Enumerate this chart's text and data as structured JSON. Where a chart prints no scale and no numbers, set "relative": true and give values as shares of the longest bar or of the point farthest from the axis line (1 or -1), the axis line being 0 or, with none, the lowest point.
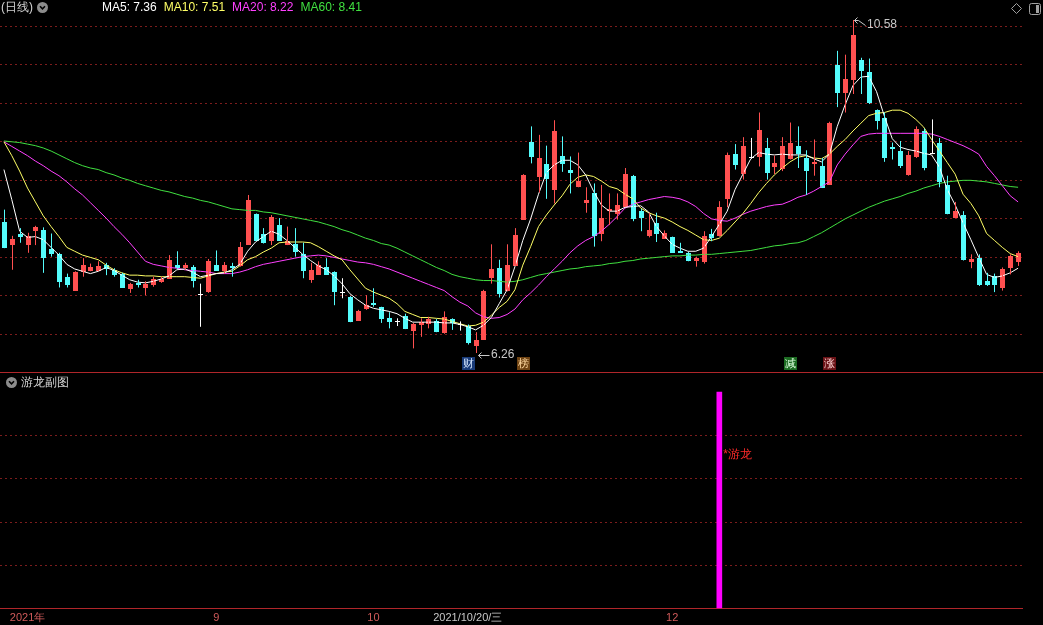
{
  "chart_data": [
    {
      "type": "candlestick",
      "title": "(日线)",
      "categories": [
        null,
        null,
        null,
        "2021年",
        null,
        null,
        null,
        null,
        null,
        null,
        null,
        null,
        null,
        null,
        null,
        null,
        null,
        null,
        null,
        null,
        null,
        null,
        null,
        null,
        null,
        null,
        null,
        "9",
        null,
        null,
        null,
        null,
        null,
        null,
        null,
        null,
        null,
        null,
        null,
        null,
        null,
        null,
        null,
        null,
        null,
        null,
        null,
        "10",
        null,
        null,
        null,
        null,
        null,
        null,
        null,
        null,
        null,
        null,
        null,
        null,
        null,
        null,
        null,
        null,
        null,
        null,
        null,
        null,
        null,
        null,
        null,
        null,
        null,
        null,
        null,
        null,
        null,
        null,
        null,
        null,
        null,
        null,
        null,
        null,
        null,
        "12",
        null,
        null,
        null,
        null,
        null,
        null,
        null,
        null,
        null,
        null,
        null,
        null,
        null,
        null,
        null,
        null,
        null,
        null,
        null,
        null,
        null,
        null,
        null,
        null,
        null,
        null,
        null,
        null,
        null,
        null,
        null,
        null,
        null,
        null,
        null,
        null,
        null,
        null,
        null,
        null,
        null,
        null,
        null,
        null
      ],
      "ohlc": [
        [
          7.96,
          8.12,
          7.62,
          7.63
        ],
        [
          7.68,
          7.78,
          7.34,
          7.74
        ],
        [
          7.81,
          7.88,
          7.69,
          7.78
        ],
        [
          7.68,
          7.82,
          7.56,
          7.78
        ],
        [
          7.86,
          7.91,
          7.66,
          7.89
        ],
        [
          7.86,
          7.89,
          7.3,
          7.5
        ],
        [
          7.61,
          7.81,
          7.51,
          7.56
        ],
        [
          7.55,
          7.56,
          7.11,
          7.2
        ],
        [
          7.25,
          7.29,
          7.11,
          7.16
        ],
        [
          7.08,
          7.32,
          7.07,
          7.31
        ],
        [
          7.33,
          7.49,
          7.25,
          7.4
        ],
        [
          7.34,
          7.42,
          7.32,
          7.38
        ],
        [
          7.34,
          7.45,
          7.32,
          7.39
        ],
        [
          7.4,
          7.43,
          7.27,
          7.36
        ],
        [
          7.34,
          7.36,
          7.25,
          7.29
        ],
        [
          7.29,
          7.3,
          7.11,
          7.12
        ],
        [
          7.1,
          7.17,
          7.04,
          7.16
        ],
        [
          7.17,
          7.21,
          7.11,
          7.15
        ],
        [
          7.11,
          7.19,
          7.01,
          7.16
        ],
        [
          7.16,
          7.25,
          7.12,
          7.22
        ],
        [
          7.2,
          7.25,
          7.17,
          7.22
        ],
        [
          7.23,
          7.53,
          7.22,
          7.47
        ],
        [
          7.4,
          7.58,
          7.35,
          7.38
        ],
        [
          7.37,
          7.43,
          7.34,
          7.4
        ],
        [
          7.38,
          7.4,
          7.11,
          7.21
        ],
        [
          7.03,
          7.16,
          6.6,
          7.03
        ],
        [
          7.06,
          7.48,
          7.04,
          7.45
        ],
        [
          7.4,
          7.59,
          7.33,
          7.34
        ],
        [
          7.34,
          7.44,
          7.29,
          7.4
        ],
        [
          7.39,
          7.43,
          7.25,
          7.37
        ],
        [
          7.4,
          7.7,
          7.38,
          7.63
        ],
        [
          7.68,
          8.31,
          7.67,
          8.25
        ],
        [
          8.06,
          8.07,
          7.72,
          7.73
        ],
        [
          7.8,
          7.88,
          7.68,
          7.7
        ],
        [
          7.73,
          8.05,
          7.66,
          8.02
        ],
        [
          7.92,
          8.01,
          7.72,
          7.73
        ],
        [
          7.68,
          7.9,
          7.66,
          7.71
        ],
        [
          7.68,
          7.88,
          7.51,
          7.58
        ],
        [
          7.55,
          7.69,
          7.23,
          7.34
        ],
        [
          7.22,
          7.43,
          7.17,
          7.34
        ],
        [
          7.29,
          7.45,
          7.28,
          7.4
        ],
        [
          7.38,
          7.49,
          7.28,
          7.29
        ],
        [
          7.31,
          7.32,
          6.88,
          7.07
        ],
        [
          7.05,
          7.23,
          6.97,
          7.05
        ],
        [
          6.99,
          7.0,
          6.66,
          6.67
        ],
        [
          6.69,
          6.82,
          6.68,
          6.81
        ],
        [
          6.85,
          7.01,
          6.82,
          6.88
        ],
        [
          6.91,
          7.1,
          6.86,
          6.89
        ],
        [
          6.86,
          6.86,
          6.65,
          6.72
        ],
        [
          6.72,
          6.79,
          6.58,
          6.67
        ],
        [
          6.67,
          6.71,
          6.61,
          6.67
        ],
        [
          6.74,
          6.77,
          6.57,
          6.58
        ],
        [
          6.56,
          6.65,
          6.32,
          6.63
        ],
        [
          6.64,
          6.71,
          6.47,
          6.66
        ],
        [
          6.65,
          6.73,
          6.58,
          6.7
        ],
        [
          6.68,
          6.7,
          6.53,
          6.54
        ],
        [
          6.53,
          6.8,
          6.51,
          6.73
        ],
        [
          6.7,
          6.71,
          6.56,
          6.66
        ],
        [
          6.63,
          6.67,
          6.55,
          6.63
        ],
        [
          6.61,
          6.63,
          6.37,
          6.4
        ],
        [
          6.37,
          6.53,
          6.26,
          6.43
        ],
        [
          6.44,
          7.08,
          6.43,
          7.06
        ],
        [
          7.24,
          7.67,
          7.16,
          7.35
        ],
        [
          7.36,
          7.47,
          6.98,
          7.04
        ],
        [
          7.08,
          7.67,
          7.06,
          7.4
        ],
        [
          7.4,
          7.88,
          7.39,
          7.79
        ],
        [
          8.0,
          8.58,
          7.99,
          8.57
        ],
        [
          9.0,
          9.2,
          8.72,
          8.82
        ],
        [
          8.56,
          9.09,
          8.34,
          8.79
        ],
        [
          8.71,
          8.95,
          8.26,
          8.53
        ],
        [
          8.39,
          9.28,
          8.2,
          9.14
        ],
        [
          8.81,
          9.07,
          8.61,
          8.72
        ],
        [
          8.63,
          8.81,
          8.33,
          8.61
        ],
        [
          8.43,
          8.86,
          8.41,
          8.49
        ],
        [
          8.22,
          8.41,
          8.08,
          8.25
        ],
        [
          8.34,
          8.46,
          7.64,
          7.79
        ],
        [
          7.82,
          8.44,
          7.71,
          8.01
        ],
        [
          8.11,
          8.33,
          7.92,
          8.13
        ],
        [
          8.08,
          8.33,
          7.99,
          8.18
        ],
        [
          8.17,
          8.66,
          8.16,
          8.58
        ],
        [
          8.56,
          8.57,
          7.97,
          8.01
        ],
        [
          8.1,
          8.13,
          7.84,
          8.02
        ],
        [
          7.79,
          8.08,
          7.76,
          7.85
        ],
        [
          7.95,
          8.08,
          7.7,
          7.82
        ],
        [
          7.75,
          7.85,
          7.74,
          7.82
        ],
        [
          7.76,
          7.77,
          7.56,
          7.57
        ],
        [
          7.58,
          7.69,
          7.56,
          7.57
        ],
        [
          7.56,
          7.57,
          7.45,
          7.47
        ],
        [
          7.47,
          7.51,
          7.38,
          7.49
        ],
        [
          7.46,
          7.84,
          7.42,
          7.78
        ],
        [
          7.8,
          7.87,
          7.71,
          7.77
        ],
        [
          7.79,
          8.23,
          7.77,
          8.15
        ],
        [
          8.27,
          8.86,
          8.15,
          8.83
        ],
        [
          8.84,
          8.97,
          8.64,
          8.71
        ],
        [
          8.6,
          9.06,
          8.51,
          8.94
        ],
        [
          8.8,
          9.05,
          8.78,
          8.8
        ],
        [
          8.82,
          9.38,
          8.68,
          9.15
        ],
        [
          8.92,
          9.05,
          8.51,
          8.61
        ],
        [
          8.69,
          8.82,
          8.58,
          8.72
        ],
        [
          8.66,
          9.06,
          8.62,
          8.95
        ],
        [
          8.79,
          9.25,
          8.77,
          8.99
        ],
        [
          8.95,
          9.2,
          8.66,
          8.85
        ],
        [
          8.79,
          8.89,
          8.31,
          8.63
        ],
        [
          8.72,
          9.03,
          8.56,
          8.74
        ],
        [
          8.69,
          8.79,
          8.4,
          8.41
        ],
        [
          8.45,
          9.26,
          8.44,
          9.25
        ],
        [
          9.99,
          10.18,
          9.45,
          9.64
        ],
        [
          9.65,
          10.13,
          9.38,
          9.81
        ],
        [
          9.81,
          10.58,
          9.62,
          10.38
        ],
        [
          10.06,
          10.09,
          9.62,
          9.93
        ],
        [
          9.9,
          10.08,
          9.49,
          9.51
        ],
        [
          9.41,
          9.42,
          9.16,
          9.28
        ],
        [
          9.31,
          9.38,
          8.74,
          8.8
        ],
        [
          8.93,
          8.99,
          8.77,
          8.92
        ],
        [
          8.88,
          9.01,
          8.66,
          8.7
        ],
        [
          8.58,
          8.88,
          8.56,
          8.83
        ],
        [
          8.82,
          9.2,
          8.79,
          9.17
        ],
        [
          9.14,
          9.17,
          8.63,
          8.67
        ],
        [
          8.86,
          9.29,
          8.84,
          8.86
        ],
        [
          8.99,
          9.05,
          8.41,
          8.49
        ],
        [
          8.44,
          8.56,
          8.06,
          8.07
        ],
        [
          8.02,
          8.22,
          8.01,
          8.1
        ],
        [
          8.05,
          8.1,
          7.46,
          7.48
        ],
        [
          7.46,
          7.54,
          7.36,
          7.48
        ],
        [
          7.49,
          7.54,
          7.13,
          7.15
        ],
        [
          7.19,
          7.3,
          7.13,
          7.15
        ],
        [
          7.26,
          7.29,
          7.05,
          7.15
        ],
        [
          7.11,
          7.37,
          7.07,
          7.35
        ],
        [
          7.37,
          7.54,
          7.28,
          7.52
        ],
        [
          7.45,
          7.58,
          7.39,
          7.56
        ]
      ],
      "colors": [
        "#54fcfc",
        "#ff5050",
        "#54fcfc",
        "#ff5050",
        "#ff5050",
        "#54fcfc",
        "#54fcfc",
        "#54fcfc",
        "#54fcfc",
        "#ff5050",
        "#ff5050",
        "#ff5050",
        "#ff5050",
        "#54fcfc",
        "#54fcfc",
        "#54fcfc",
        "#ff5050",
        "#54fcfc",
        "#ff5050",
        "#ff5050",
        "#ff5050",
        "#ff5050",
        "#54fcfc",
        "#ff5050",
        "#54fcfc",
        "#ffffff",
        "#ff5050",
        "#54fcfc",
        "#ff5050",
        "#54fcfc",
        "#ff5050",
        "#ff5050",
        "#54fcfc",
        "#54fcfc",
        "#ff5050",
        "#54fcfc",
        "#ff5050",
        "#54fcfc",
        "#54fcfc",
        "#ff5050",
        "#ff5050",
        "#54fcfc",
        "#54fcfc",
        "#ffffff",
        "#54fcfc",
        "#ff5050",
        "#ff5050",
        "#54fcfc",
        "#54fcfc",
        "#54fcfc",
        "#ffffff",
        "#54fcfc",
        "#ff5050",
        "#ff5050",
        "#ff5050",
        "#54fcfc",
        "#ff5050",
        "#54fcfc",
        "#ffffff",
        "#54fcfc",
        "#ff5050",
        "#ff5050",
        "#ff5050",
        "#54fcfc",
        "#ff5050",
        "#ff5050",
        "#ff5050",
        "#54fcfc",
        "#ff5050",
        "#54fcfc",
        "#ff5050",
        "#54fcfc",
        "#54fcfc",
        "#ff5050",
        "#ff5050",
        "#54fcfc",
        "#ff5050",
        "#ff5050",
        "#ff5050",
        "#ff5050",
        "#54fcfc",
        "#54fcfc",
        "#ff5050",
        "#54fcfc",
        "#ff5050",
        "#54fcfc",
        "#54fcfc",
        "#54fcfc",
        "#ff5050",
        "#ff5050",
        "#54fcfc",
        "#ff5050",
        "#ff5050",
        "#54fcfc",
        "#ff5050",
        "#ffffff",
        "#ff5050",
        "#54fcfc",
        "#ff5050",
        "#ff5050",
        "#ff5050",
        "#54fcfc",
        "#54fcfc",
        "#ff5050",
        "#54fcfc",
        "#ff5050",
        "#54fcfc",
        "#ff5050",
        "#ff5050",
        "#54fcfc",
        "#54fcfc",
        "#54fcfc",
        "#54fcfc",
        "#54fcfc",
        "#54fcfc",
        "#ff5050",
        "#ff5050",
        "#54fcfc",
        "#ffffff",
        "#54fcfc",
        "#54fcfc",
        "#ff5050",
        "#54fcfc",
        "#ff5050",
        "#54fcfc",
        "#54fcfc",
        "#54fcfc",
        "#ff5050",
        "#ff5050",
        "#ff5050"
      ],
      "series": [
        {
          "name": "MA5: 7.36",
          "type": "line",
          "color": "#ffffff",
          "values": [
            8.64,
            8.25,
            7.84,
            7.76,
            7.77,
            7.73,
            7.63,
            7.53,
            7.41,
            7.35,
            7.32,
            7.29,
            7.32,
            7.37,
            7.33,
            7.27,
            7.21,
            7.18,
            7.17,
            7.19,
            7.22,
            7.26,
            7.34,
            7.35,
            7.31,
            7.25,
            7.27,
            7.29,
            7.3,
            7.34,
            7.41,
            7.58,
            7.7,
            7.77,
            7.84,
            7.8,
            7.72,
            7.63,
            7.54,
            7.46,
            7.39,
            7.34,
            7.26,
            7.16,
            7.03,
            6.95,
            6.88,
            6.84,
            6.82,
            6.8,
            6.77,
            6.71,
            6.66,
            6.66,
            6.66,
            6.66,
            6.65,
            6.65,
            6.63,
            6.6,
            6.56,
            6.62,
            6.72,
            6.9,
            7.08,
            7.38,
            7.72,
            8.0,
            8.32,
            8.6,
            8.7,
            8.76,
            8.76,
            8.7,
            8.57,
            8.36,
            8.18,
            8.1,
            8.1,
            8.15,
            8.16,
            8.17,
            8.09,
            7.9,
            7.78,
            7.67,
            7.62,
            7.58,
            7.58,
            7.62,
            7.77,
            7.93,
            8.1,
            8.38,
            8.58,
            8.78,
            8.86,
            8.84,
            8.83,
            8.84,
            8.83,
            8.83,
            8.83,
            8.78,
            8.74,
            8.84,
            9.2,
            9.48,
            9.73,
            9.84,
            9.85,
            9.65,
            9.33,
            9.04,
            8.93,
            8.9,
            8.88,
            8.85,
            8.83,
            8.67,
            8.38,
            8.18,
            7.95,
            7.73,
            7.5,
            7.28,
            7.24,
            7.26,
            7.3,
            7.36
          ]
        },
        {
          "name": "MA10: 7.51",
          "type": "line",
          "color": "#ffff66",
          "values": [
            9.0,
            8.82,
            8.62,
            8.4,
            8.22,
            8.04,
            7.9,
            7.77,
            7.63,
            7.58,
            7.53,
            7.5,
            7.47,
            7.4,
            7.34,
            7.3,
            7.27,
            7.27,
            7.26,
            7.26,
            7.25,
            7.25,
            7.25,
            7.25,
            7.24,
            7.23,
            7.26,
            7.29,
            7.31,
            7.32,
            7.39,
            7.47,
            7.51,
            7.57,
            7.62,
            7.69,
            7.7,
            7.7,
            7.7,
            7.69,
            7.64,
            7.58,
            7.52,
            7.47,
            7.34,
            7.22,
            7.1,
            7.05,
            7.01,
            6.97,
            6.9,
            6.8,
            6.76,
            6.72,
            6.72,
            6.71,
            6.7,
            6.67,
            6.64,
            6.61,
            6.62,
            6.66,
            6.75,
            6.85,
            6.93,
            7.08,
            7.4,
            7.64,
            7.9,
            8.05,
            8.18,
            8.3,
            8.45,
            8.54,
            8.57,
            8.55,
            8.49,
            8.42,
            8.39,
            8.32,
            8.26,
            8.14,
            8.08,
            8.04,
            8.01,
            7.96,
            7.9,
            7.85,
            7.79,
            7.73,
            7.72,
            7.75,
            7.85,
            7.96,
            8.07,
            8.2,
            8.34,
            8.46,
            8.57,
            8.66,
            8.74,
            8.8,
            8.82,
            8.79,
            8.78,
            8.84,
            8.94,
            9.03,
            9.14,
            9.24,
            9.34,
            9.37,
            9.38,
            9.41,
            9.41,
            9.37,
            9.29,
            9.19,
            9.03,
            8.88,
            8.73,
            8.58,
            8.32,
            8.2,
            8.04,
            7.81,
            7.72,
            7.63,
            7.55,
            7.51
          ]
        },
        {
          "name": "MA20: 8.22",
          "type": "line",
          "color": "#ff40ff",
          "values": [
            9.0,
            8.94,
            8.88,
            8.82,
            8.75,
            8.69,
            8.62,
            8.56,
            8.48,
            8.39,
            8.31,
            8.21,
            8.11,
            8.01,
            7.9,
            7.8,
            7.69,
            7.57,
            7.45,
            7.41,
            7.39,
            7.37,
            7.36,
            7.34,
            7.33,
            7.32,
            7.31,
            7.29,
            7.29,
            7.29,
            7.31,
            7.34,
            7.38,
            7.41,
            7.43,
            7.45,
            7.47,
            7.49,
            7.51,
            7.52,
            7.53,
            7.52,
            7.5,
            7.48,
            7.46,
            7.44,
            7.43,
            7.41,
            7.38,
            7.35,
            7.31,
            7.27,
            7.23,
            7.19,
            7.15,
            7.11,
            7.07,
            6.99,
            6.92,
            6.87,
            6.78,
            6.73,
            6.71,
            6.72,
            6.76,
            6.83,
            6.95,
            7.04,
            7.14,
            7.25,
            7.35,
            7.45,
            7.56,
            7.65,
            7.72,
            7.77,
            7.84,
            7.93,
            8.03,
            8.14,
            8.19,
            8.22,
            8.25,
            8.27,
            8.29,
            8.28,
            8.26,
            8.22,
            8.16,
            8.07,
            8.0,
            7.98,
            7.97,
            8.01,
            8.06,
            8.1,
            8.13,
            8.16,
            8.18,
            8.19,
            8.23,
            8.28,
            8.31,
            8.36,
            8.42,
            8.48,
            8.7,
            8.84,
            8.96,
            9.07,
            9.1,
            9.11,
            9.11,
            9.11,
            9.11,
            9.11,
            9.11,
            9.11,
            9.1,
            9.07,
            9.03,
            8.99,
            8.95,
            8.9,
            8.84,
            8.68,
            8.56,
            8.43,
            8.3,
            8.22
          ]
        },
        {
          "name": "MA60: 8.41",
          "type": "line",
          "color": "#40e040",
          "values": [
            9.01,
            9.0,
            8.99,
            8.97,
            8.95,
            8.92,
            8.88,
            8.83,
            8.78,
            8.73,
            8.69,
            8.66,
            8.64,
            8.6,
            8.57,
            8.53,
            8.5,
            8.46,
            8.43,
            8.4,
            8.37,
            8.35,
            8.32,
            8.29,
            8.27,
            8.24,
            8.22,
            8.19,
            8.16,
            8.13,
            8.12,
            8.11,
            8.11,
            8.09,
            8.08,
            8.06,
            8.04,
            8.02,
            8.0,
            7.98,
            7.96,
            7.93,
            7.9,
            7.86,
            7.83,
            7.79,
            7.75,
            7.72,
            7.68,
            7.66,
            7.62,
            7.57,
            7.52,
            7.47,
            7.42,
            7.37,
            7.33,
            7.28,
            7.25,
            7.23,
            7.21,
            7.2,
            7.2,
            7.19,
            7.18,
            7.19,
            7.21,
            7.24,
            7.27,
            7.29,
            7.31,
            7.33,
            7.35,
            7.36,
            7.38,
            7.39,
            7.4,
            7.42,
            7.43,
            7.45,
            7.46,
            7.48,
            7.49,
            7.5,
            7.51,
            7.52,
            7.52,
            7.53,
            7.53,
            7.54,
            7.54,
            7.55,
            7.56,
            7.57,
            7.58,
            7.59,
            7.61,
            7.63,
            7.65,
            7.66,
            7.68,
            7.69,
            7.72,
            7.77,
            7.82,
            7.88,
            7.94,
            8.0,
            8.05,
            8.1,
            8.15,
            8.19,
            8.23,
            8.26,
            8.29,
            8.33,
            8.36,
            8.4,
            8.43,
            8.46,
            8.48,
            8.49,
            8.5,
            8.5,
            8.49,
            8.48,
            8.46,
            8.44,
            8.42,
            8.41
          ]
        }
      ],
      "yticks": [
        {
          "value": 6.5,
          "label": null
        },
        {
          "value": 7,
          "label": null
        },
        {
          "value": 7.5,
          "label": null
        },
        {
          "value": 8,
          "label": null
        },
        {
          "value": 8.5,
          "label": null
        },
        {
          "value": 9,
          "label": null
        },
        {
          "value": 9.5,
          "label": null
        },
        {
          "value": 10,
          "label": null
        },
        {
          "value": 10.5,
          "label": null
        }
      ],
      "grid": "y",
      "tick_labels": "x",
      "annotations": [
        "10.58",
        "6.26",
        "财",
        "榜",
        "减",
        "涨",
        "2021/10/20/三"
      ]
    },
    {
      "type": "bar",
      "title": "游龙副图",
      "categories": [
        null,
        null,
        null,
        null,
        null,
        null,
        null,
        null,
        null,
        null,
        null,
        null,
        null,
        null,
        null,
        null,
        null,
        null,
        null,
        null,
        null,
        null,
        null,
        null,
        null,
        null,
        null,
        null,
        null,
        null,
        null,
        null,
        null,
        null,
        null,
        null,
        null,
        null,
        null,
        null,
        null,
        null,
        null,
        null,
        null,
        null,
        null,
        null,
        null,
        null,
        null,
        null,
        null,
        null,
        null,
        null,
        null,
        null,
        null,
        null,
        null,
        null,
        null,
        null,
        null,
        null,
        null,
        null,
        null,
        null,
        null,
        null,
        null,
        null,
        null,
        null,
        null,
        null,
        null,
        null,
        null,
        null,
        null,
        null,
        null,
        null,
        null,
        null,
        null,
        null,
        null,
        null,
        null,
        null,
        null,
        null,
        null,
        null,
        null,
        null,
        null,
        null,
        null,
        null,
        null,
        null,
        null,
        null,
        null,
        null,
        null,
        null,
        null,
        null,
        null,
        null,
        null,
        null,
        null,
        null,
        null,
        null,
        null,
        null,
        null,
        null,
        null,
        null,
        null,
        null
      ],
      "values": [
        null,
        null,
        null,
        null,
        null,
        null,
        null,
        null,
        null,
        null,
        null,
        null,
        null,
        null,
        null,
        null,
        null,
        null,
        null,
        null,
        null,
        null,
        null,
        null,
        null,
        null,
        null,
        null,
        null,
        null,
        null,
        null,
        null,
        null,
        null,
        null,
        null,
        null,
        null,
        null,
        null,
        null,
        null,
        null,
        null,
        null,
        null,
        null,
        null,
        null,
        null,
        null,
        null,
        null,
        null,
        null,
        null,
        null,
        null,
        null,
        null,
        null,
        null,
        null,
        null,
        null,
        null,
        null,
        null,
        null,
        null,
        null,
        null,
        null,
        null,
        null,
        null,
        null,
        null,
        null,
        null,
        null,
        null,
        null,
        null,
        null,
        null,
        null,
        null,
        null,
        null,
        1,
        null,
        null,
        null,
        null,
        null,
        null,
        null,
        null,
        null,
        null,
        null,
        null,
        null,
        null,
        null,
        null,
        null,
        null,
        null,
        null,
        null,
        null,
        null,
        null,
        null,
        null,
        null,
        null,
        null,
        null,
        null,
        null,
        null,
        null,
        null,
        null,
        null,
        null
      ],
      "color": "#ff00ff",
      "relative": true,
      "tick_labels": false,
      "ref_lines": [
        {
          "axis": "y",
          "value": 0.2,
          "color": "#7c1c1c",
          "line_style": "dotted"
        },
        {
          "axis": "y",
          "value": 0.4,
          "color": "#7c1c1c",
          "line_style": "dotted"
        },
        {
          "axis": "y",
          "value": 0.6,
          "color": "#7c1c1c",
          "line_style": "dotted"
        },
        {
          "axis": "y",
          "value": 0.8,
          "color": "#7c1c1c",
          "line_style": "dotted"
        }
      ],
      "annotations": [
        "*游龙"
      ]
    }
  ]
}
